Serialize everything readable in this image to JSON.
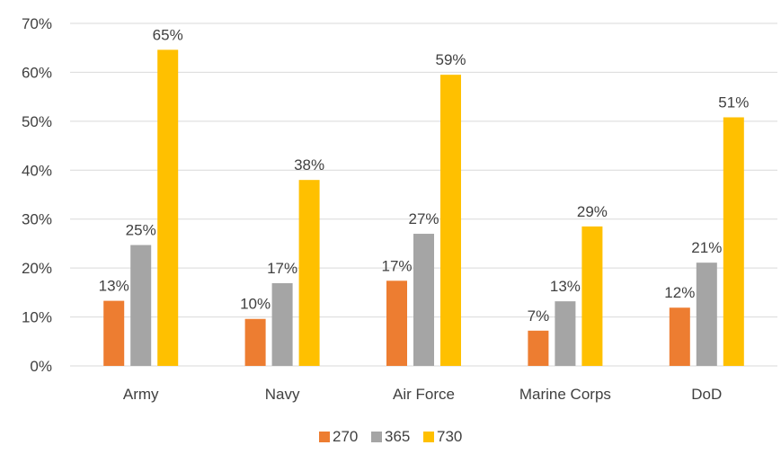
{
  "chart_data": {
    "type": "bar",
    "categories": [
      "Army",
      "Navy",
      "Air Force",
      "Marine Corps",
      "DoD"
    ],
    "series": [
      {
        "name": "270",
        "color": "#ED7D31",
        "values": [
          13.3,
          9.6,
          17.4,
          7.2,
          11.9
        ],
        "labels": [
          "13%",
          "10%",
          "17%",
          "7%",
          "12%"
        ]
      },
      {
        "name": "365",
        "color": "#A5A5A5",
        "values": [
          24.7,
          16.9,
          27.0,
          13.2,
          21.1
        ],
        "labels": [
          "25%",
          "17%",
          "27%",
          "13%",
          "21%"
        ]
      },
      {
        "name": "730",
        "color": "#FFC000",
        "values": [
          64.6,
          38.0,
          59.5,
          28.5,
          50.8
        ],
        "labels": [
          "65%",
          "38%",
          "59%",
          "29%",
          "51%"
        ]
      }
    ],
    "y_ticks": [
      "0%",
      "10%",
      "20%",
      "30%",
      "40%",
      "50%",
      "60%",
      "70%"
    ],
    "ylim": [
      0,
      70
    ],
    "title": "",
    "xlabel": "",
    "ylabel": "",
    "grid": true,
    "legend_position": "bottom"
  }
}
